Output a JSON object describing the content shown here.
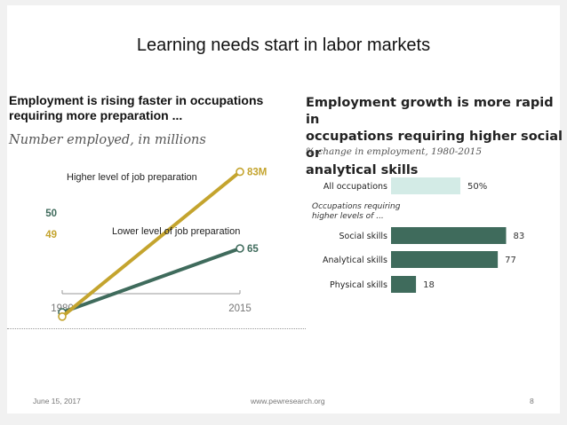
{
  "slide": {
    "title": "Learning needs start in labor markets",
    "footer_date": "June 15, 2017",
    "footer_url": "www.pewresearch.org",
    "page_number": "8"
  },
  "chart_data": [
    {
      "type": "line",
      "title": "Employment is rising faster in occupations requiring more preparation ...",
      "title_lines": [
        "Employment is rising faster in occupations",
        "requiring more preparation ..."
      ],
      "subtitle": "Number employed, in millions",
      "x": [
        "1980",
        "2015"
      ],
      "series": [
        {
          "name": "Higher level of job preparation",
          "values": [
            49,
            83
          ],
          "value_labels": [
            "49",
            "83M"
          ],
          "color": "#c4a42e"
        },
        {
          "name": "Lower level of job preparation",
          "values": [
            50,
            65
          ],
          "value_labels": [
            "50",
            "65"
          ],
          "color": "#3f6b5c"
        }
      ],
      "ylim": [
        40,
        90
      ],
      "grid": false,
      "legend": "inline labels"
    },
    {
      "type": "bar",
      "orientation": "horizontal",
      "title": "Employment growth is more rapid in occupations requiring higher social or analytical skills",
      "title_lines": [
        "Employment growth is more rapid in",
        "occupations requiring higher social or",
        "analytical skills"
      ],
      "subtitle": "% change in employment, 1980-2015",
      "group_label_lines": [
        "Occupations requiring",
        "higher levels of ..."
      ],
      "categories": [
        "All occupations",
        "Social skills",
        "Analytical skills",
        "Physical skills"
      ],
      "values": [
        50,
        83,
        77,
        18
      ],
      "value_labels": [
        "50%",
        "83",
        "77",
        "18"
      ],
      "colors": [
        "#d3ebe6",
        "#3f6b5c",
        "#3f6b5c",
        "#3f6b5c"
      ],
      "xlim": [
        0,
        90
      ],
      "grid": false
    }
  ]
}
